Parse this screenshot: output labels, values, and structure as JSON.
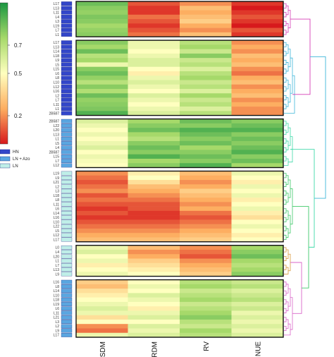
{
  "chart_data": {
    "type": "heatmap",
    "columns": [
      "SDM",
      "RDM",
      "RV",
      "NUE"
    ],
    "color_scale": {
      "ticks": [
        0.7,
        0.5,
        0.2
      ],
      "range": [
        0.0,
        1.0
      ],
      "colors": [
        "#d7191c",
        "#fdae61",
        "#ffffbf",
        "#a6d96a",
        "#1a9641"
      ]
    },
    "legend": [
      {
        "label": "HN",
        "color": "#3346c9"
      },
      {
        "label": "LN + Azo",
        "color": "#5aa6e0"
      },
      {
        "label": "LN",
        "color": "#bfeee8"
      }
    ],
    "clusters": [
      {
        "color": "#d63fb6",
        "rows": [
          {
            "label": "L17",
            "group": "HN",
            "values": [
              0.85,
              0.1,
              0.2,
              0.05
            ]
          },
          {
            "label": "L13",
            "group": "HN",
            "values": [
              0.8,
              0.05,
              0.3,
              0.0
            ]
          },
          {
            "label": "L11",
            "group": "HN",
            "values": [
              0.78,
              0.05,
              0.25,
              0.05
            ]
          },
          {
            "label": "L4",
            "group": "HN",
            "values": [
              0.82,
              0.15,
              0.3,
              0.1
            ]
          },
          {
            "label": "L3",
            "group": "HN",
            "values": [
              0.8,
              0.1,
              0.35,
              0.05
            ]
          },
          {
            "label": "L19",
            "group": "HN",
            "values": [
              0.75,
              0.05,
              0.25,
              0.0
            ]
          },
          {
            "label": "L7",
            "group": "HN",
            "values": [
              0.78,
              0.1,
              0.2,
              0.1
            ]
          },
          {
            "label": "L1",
            "group": "HN",
            "values": [
              0.8,
              0.15,
              0.3,
              0.05
            ]
          }
        ]
      },
      {
        "color": "#3fb7d9",
        "rows": [
          {
            "label": "L17",
            "group": "HN",
            "values": [
              0.8,
              0.55,
              0.7,
              0.2
            ]
          },
          {
            "label": "L13",
            "group": "HN",
            "values": [
              0.75,
              0.55,
              0.75,
              0.25
            ]
          },
          {
            "label": "L14",
            "group": "HN",
            "values": [
              0.85,
              0.5,
              0.65,
              0.2
            ]
          },
          {
            "label": "L18",
            "group": "HN",
            "values": [
              0.7,
              0.55,
              0.8,
              0.3
            ]
          },
          {
            "label": "L9",
            "group": "HN",
            "values": [
              0.75,
              0.6,
              0.65,
              0.25
            ]
          },
          {
            "label": "L5",
            "group": "HN",
            "values": [
              0.55,
              0.6,
              0.7,
              0.3
            ]
          },
          {
            "label": "L15",
            "group": "HN",
            "values": [
              0.8,
              0.5,
              0.6,
              0.2
            ]
          },
          {
            "label": "L6",
            "group": "HN",
            "values": [
              0.85,
              0.45,
              0.7,
              0.15
            ]
          },
          {
            "label": "L8",
            "group": "HN",
            "values": [
              0.78,
              0.55,
              0.75,
              0.25
            ]
          },
          {
            "label": "L10",
            "group": "HN",
            "values": [
              0.7,
              0.6,
              0.65,
              0.3
            ]
          },
          {
            "label": "L12",
            "group": "HN",
            "values": [
              0.8,
              0.55,
              0.7,
              0.2
            ]
          },
          {
            "label": "L16",
            "group": "HN",
            "values": [
              0.72,
              0.5,
              0.6,
              0.25
            ]
          },
          {
            "label": "L2",
            "group": "HN",
            "values": [
              0.85,
              0.6,
              0.75,
              0.3
            ]
          },
          {
            "label": "L7",
            "group": "HN",
            "values": [
              0.78,
              0.55,
              0.65,
              0.2
            ]
          },
          {
            "label": "L11",
            "group": "HN",
            "values": [
              0.8,
              0.5,
              0.7,
              0.25
            ]
          },
          {
            "label": "L1",
            "group": "HN",
            "values": [
              0.82,
              0.55,
              0.6,
              0.2
            ]
          },
          {
            "label": "2B587",
            "group": "HN",
            "values": [
              0.9,
              0.6,
              0.7,
              0.2
            ]
          }
        ]
      },
      {
        "color": "#3ed9a8",
        "rows": [
          {
            "label": "2B587",
            "group": "LN + Azo",
            "values": [
              0.6,
              0.75,
              0.85,
              0.8
            ]
          },
          {
            "label": "L22",
            "group": "LN + Azo",
            "values": [
              0.55,
              0.8,
              0.8,
              0.85
            ]
          },
          {
            "label": "L20",
            "group": "LN + Azo",
            "values": [
              0.5,
              0.85,
              0.9,
              0.9
            ]
          },
          {
            "label": "L13",
            "group": "LN + Azo",
            "values": [
              0.55,
              0.75,
              0.85,
              0.8
            ]
          },
          {
            "label": "L1",
            "group": "LN + Azo",
            "values": [
              0.5,
              0.7,
              0.8,
              0.85
            ]
          },
          {
            "label": "L5",
            "group": "LN + Azo",
            "values": [
              0.55,
              0.8,
              0.85,
              0.8
            ]
          },
          {
            "label": "L4",
            "group": "LN + Azo",
            "values": [
              0.6,
              0.85,
              0.75,
              0.85
            ]
          },
          {
            "label": "2B587",
            "group": "LN + Azo",
            "values": [
              0.5,
              0.8,
              0.8,
              0.9
            ]
          },
          {
            "label": "L15",
            "group": "LN + Azo",
            "values": [
              0.55,
              0.9,
              0.85,
              0.8
            ]
          },
          {
            "label": "L7",
            "group": "LN + Azo",
            "values": [
              0.52,
              0.75,
              0.8,
              0.85
            ]
          },
          {
            "label": "L12",
            "group": "LN + Azo",
            "values": [
              0.5,
              0.8,
              0.9,
              0.75
            ]
          }
        ]
      },
      {
        "color": "#40c96a",
        "rows": [
          {
            "label": "L19",
            "group": "LN",
            "values": [
              0.2,
              0.45,
              0.3,
              0.55
            ]
          },
          {
            "label": "L9",
            "group": "LN",
            "values": [
              0.15,
              0.5,
              0.25,
              0.5
            ]
          },
          {
            "label": "L21",
            "group": "LN",
            "values": [
              0.1,
              0.4,
              0.2,
              0.45
            ]
          },
          {
            "label": "L2",
            "group": "LN",
            "values": [
              0.15,
              0.3,
              0.25,
              0.55
            ]
          },
          {
            "label": "L3",
            "group": "LN",
            "values": [
              0.2,
              0.25,
              0.35,
              0.5
            ]
          },
          {
            "label": "L18",
            "group": "LN",
            "values": [
              0.1,
              0.2,
              0.3,
              0.55
            ]
          },
          {
            "label": "L8",
            "group": "LN",
            "values": [
              0.15,
              0.15,
              0.25,
              0.45
            ]
          },
          {
            "label": "L11",
            "group": "LN",
            "values": [
              0.1,
              0.1,
              0.2,
              0.5
            ]
          },
          {
            "label": "L6",
            "group": "LN",
            "values": [
              0.05,
              0.1,
              0.25,
              0.55
            ]
          },
          {
            "label": "L14",
            "group": "LN",
            "values": [
              0.1,
              0.05,
              0.15,
              0.45
            ]
          },
          {
            "label": "L16",
            "group": "LN",
            "values": [
              0.05,
              0.05,
              0.1,
              0.4
            ]
          },
          {
            "label": "L10",
            "group": "LN",
            "values": [
              0.1,
              0.1,
              0.15,
              0.5
            ]
          },
          {
            "label": "L22",
            "group": "LN",
            "values": [
              0.15,
              0.15,
              0.2,
              0.55
            ]
          },
          {
            "label": "L5",
            "group": "LN",
            "values": [
              0.2,
              0.2,
              0.25,
              0.5
            ]
          },
          {
            "label": "L12",
            "group": "LN",
            "values": [
              0.25,
              0.25,
              0.3,
              0.45
            ]
          },
          {
            "label": "L17",
            "group": "LN",
            "values": [
              0.3,
              0.3,
              0.35,
              0.5
            ]
          }
        ]
      },
      {
        "color": "#d99a3e",
        "rows": [
          {
            "label": "L0",
            "group": "LN",
            "values": [
              0.55,
              0.3,
              0.2,
              0.75
            ]
          },
          {
            "label": "L4",
            "group": "LN",
            "values": [
              0.6,
              0.2,
              0.15,
              0.8
            ]
          },
          {
            "label": "L20",
            "group": "LN",
            "values": [
              0.5,
              0.25,
              0.1,
              0.85
            ]
          },
          {
            "label": "L1",
            "group": "LN",
            "values": [
              0.55,
              0.35,
              0.2,
              0.75
            ]
          },
          {
            "label": "L7",
            "group": "LN",
            "values": [
              0.45,
              0.4,
              0.25,
              0.7
            ]
          },
          {
            "label": "L13",
            "group": "LN",
            "values": [
              0.5,
              0.45,
              0.3,
              0.75
            ]
          },
          {
            "label": "L9",
            "group": "LN",
            "values": [
              0.55,
              0.5,
              0.35,
              0.8
            ]
          }
        ]
      },
      {
        "color": "#d966c9",
        "rows": [
          {
            "label": "L16",
            "group": "LN + Azo",
            "values": [
              0.35,
              0.5,
              0.7,
              0.65
            ]
          },
          {
            "label": "L8",
            "group": "LN + Azo",
            "values": [
              0.3,
              0.55,
              0.75,
              0.7
            ]
          },
          {
            "label": "L14",
            "group": "LN + Azo",
            "values": [
              0.4,
              0.5,
              0.65,
              0.6
            ]
          },
          {
            "label": "L10",
            "group": "LN + Azo",
            "values": [
              0.45,
              0.6,
              0.7,
              0.65
            ]
          },
          {
            "label": "L18",
            "group": "LN + Azo",
            "values": [
              0.5,
              0.55,
              0.75,
              0.7
            ]
          },
          {
            "label": "L19",
            "group": "LN + Azo",
            "values": [
              0.55,
              0.5,
              0.65,
              0.6
            ]
          },
          {
            "label": "L6",
            "group": "LN + Azo",
            "values": [
              0.6,
              0.45,
              0.7,
              0.65
            ]
          },
          {
            "label": "L11",
            "group": "LN + Azo",
            "values": [
              0.55,
              0.55,
              0.75,
              0.55
            ]
          },
          {
            "label": "L21",
            "group": "LN + Azo",
            "values": [
              0.4,
              0.6,
              0.8,
              0.6
            ]
          },
          {
            "label": "L3",
            "group": "LN + Azo",
            "values": [
              0.5,
              0.5,
              0.7,
              0.55
            ]
          },
          {
            "label": "L2",
            "group": "LN + Azo",
            "values": [
              0.2,
              0.6,
              0.65,
              0.6
            ]
          },
          {
            "label": "L9",
            "group": "LN + Azo",
            "values": [
              0.15,
              0.55,
              0.75,
              0.55
            ]
          },
          {
            "label": "L17",
            "group": "LN + Azo",
            "values": [
              0.55,
              0.6,
              0.7,
              0.6
            ]
          }
        ]
      }
    ]
  }
}
